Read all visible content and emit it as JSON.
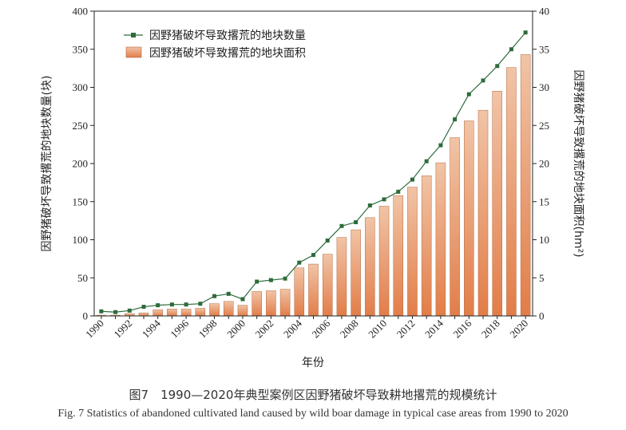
{
  "chart_data": {
    "type": "bar",
    "x": [
      1990,
      1991,
      1992,
      1993,
      1994,
      1995,
      1996,
      1997,
      1998,
      1999,
      2000,
      2001,
      2002,
      2003,
      2004,
      2005,
      2006,
      2007,
      2008,
      2009,
      2010,
      2011,
      2012,
      2013,
      2014,
      2015,
      2016,
      2017,
      2018,
      2019,
      2020
    ],
    "x_tick_labels": [
      "1990",
      "1992",
      "1994",
      "1996",
      "1998",
      "2000",
      "2002",
      "2004",
      "2006",
      "2008",
      "2010",
      "2012",
      "2014",
      "2016",
      "2018",
      "2020"
    ],
    "xlabel": "年份",
    "ylabel_left": "因野猪破坏导致撂荒的地块数量(块)",
    "ylabel_right": "因野猪破坏导致撂荒的地块面积(hm²)",
    "ylim_left": [
      0,
      400
    ],
    "ylim_right": [
      0,
      40
    ],
    "yticks_left": [
      "0",
      "50",
      "100",
      "150",
      "200",
      "250",
      "300",
      "350",
      "400"
    ],
    "yticks_right": [
      "0",
      "5",
      "10",
      "15",
      "20",
      "25",
      "30",
      "35",
      "40"
    ],
    "legend_position": "top-left",
    "series": [
      {
        "name": "因野猪破坏导致撂荒的地块数量",
        "type": "line",
        "axis": "left",
        "color": "#2e6b3c",
        "values": [
          6,
          5,
          7,
          12,
          14,
          15,
          15,
          16,
          26,
          29,
          22,
          45,
          47,
          49,
          70,
          80,
          99,
          118,
          123,
          145,
          153,
          163,
          179,
          203,
          224,
          258,
          291,
          309,
          328,
          350,
          372
        ]
      },
      {
        "name": "因野猪破坏导致撂荒的地块面积",
        "type": "bar",
        "axis": "right",
        "color": "#e8956a",
        "values": [
          0.1,
          0.1,
          0.3,
          0.4,
          0.8,
          0.9,
          0.9,
          1.0,
          1.6,
          1.9,
          1.4,
          3.2,
          3.3,
          3.5,
          6.3,
          6.8,
          8.1,
          10.3,
          11.3,
          12.9,
          14.4,
          15.8,
          16.9,
          18.4,
          20.1,
          23.4,
          25.6,
          27.0,
          29.5,
          32.6,
          34.3
        ]
      }
    ]
  },
  "caption": {
    "chinese": "图7　1990—2020年典型案例区因野猪破坏导致耕地撂荒的规模统计",
    "english": "Fig. 7  Statistics of abandoned cultivated land caused by wild boar damage in typical case areas from 1990 to 2020"
  }
}
